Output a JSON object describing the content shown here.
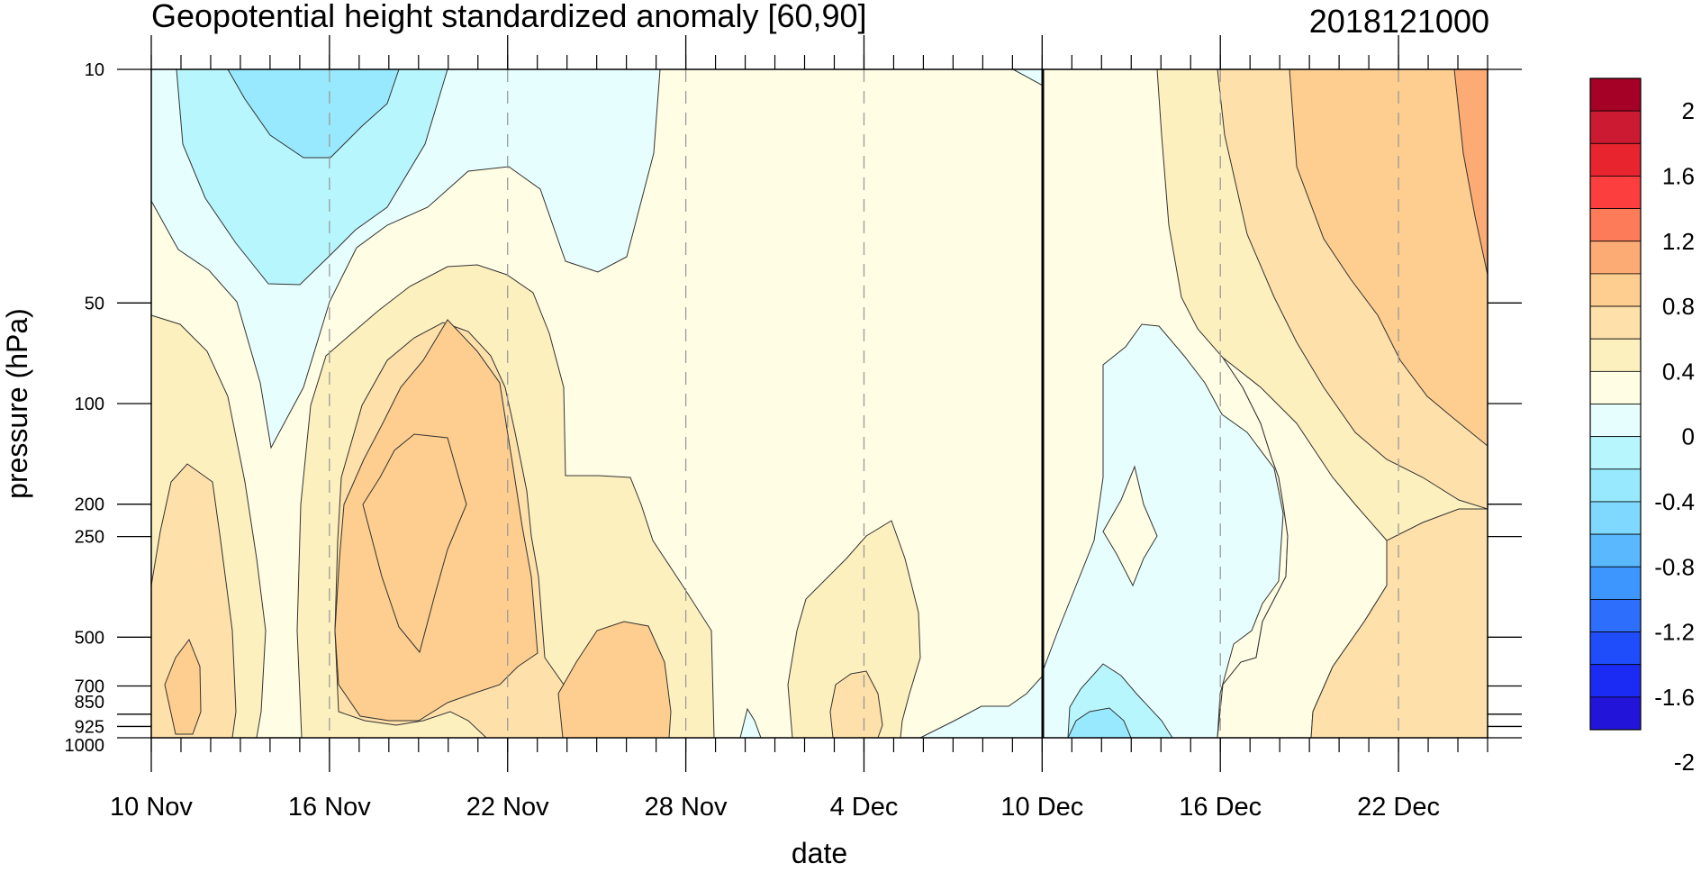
{
  "chart_data": {
    "type": "heatmap",
    "title": "Geopotential height standardized anomaly [60,90]",
    "run_label": "2018121000",
    "xlabel": "date",
    "ylabel": "pressure (hPa)",
    "x_ticks": [
      "10 Nov",
      "16 Nov",
      "22 Nov",
      "28 Nov",
      "4 Dec",
      "10 Dec",
      "16 Dec",
      "22 Dec"
    ],
    "x_range_days": [
      "2018-11-10",
      "2018-12-25"
    ],
    "y_ticks": [
      10,
      50,
      100,
      200,
      250,
      500,
      700,
      850,
      925,
      1000
    ],
    "y_scale": "log",
    "y_range": [
      1000,
      10
    ],
    "analysis_forecast_divider": "10 Dec",
    "colorbar": {
      "labels": [
        "2",
        "1.6",
        "1.2",
        "0.8",
        "0.4",
        "0",
        "-0.4",
        "-0.8",
        "-1.2",
        "-1.6",
        "-2"
      ],
      "levels": [
        2.2,
        2.0,
        1.8,
        1.6,
        1.4,
        1.2,
        1.0,
        0.8,
        0.6,
        0.4,
        0.2,
        0.0,
        -0.2,
        -0.4,
        -0.6,
        -0.8,
        -1.0,
        -1.2,
        -1.4,
        -1.6,
        -1.8,
        -2.0,
        -2.2
      ],
      "colors": [
        "#a50026",
        "#cb1a32",
        "#e8252e",
        "#fc3e3e",
        "#fd7b58",
        "#fdab75",
        "#fdce8f",
        "#fde0aa",
        "#fdf0bf",
        "#fffde4",
        "#e6fffe",
        "#b8f6fe",
        "#98e9fd",
        "#7fd8fd",
        "#5ab8fe",
        "#3c96fe",
        "#2e6efd",
        "#1f4dfb",
        "#1c2bf4",
        "#2314d9"
      ]
    },
    "regions": [
      {
        "name": "positive 0-0.2",
        "value": 0.1,
        "color": "#fffde4"
      },
      {
        "name": "positive 0.2-0.4",
        "value": 0.3,
        "color": "#fdf0bf"
      },
      {
        "name": "positive 0.4-0.6",
        "value": 0.5,
        "color": "#fde0aa"
      },
      {
        "name": "positive 0.6-0.8",
        "value": 0.7,
        "color": "#fdce8f"
      },
      {
        "name": "positive 0.8-1.0",
        "value": 0.9,
        "color": "#fdab75"
      },
      {
        "name": "negative 0 to -0.2",
        "value": -0.1,
        "color": "#e6fffe"
      },
      {
        "name": "negative -0.2 to -0.4",
        "value": -0.3,
        "color": "#b8f6fe"
      },
      {
        "name": "negative -0.4 to -0.6",
        "value": -0.5,
        "color": "#98e9fd"
      },
      {
        "name": "negative -0.6 to -0.8",
        "value": -0.7,
        "color": "#7fd8fd"
      }
    ]
  }
}
